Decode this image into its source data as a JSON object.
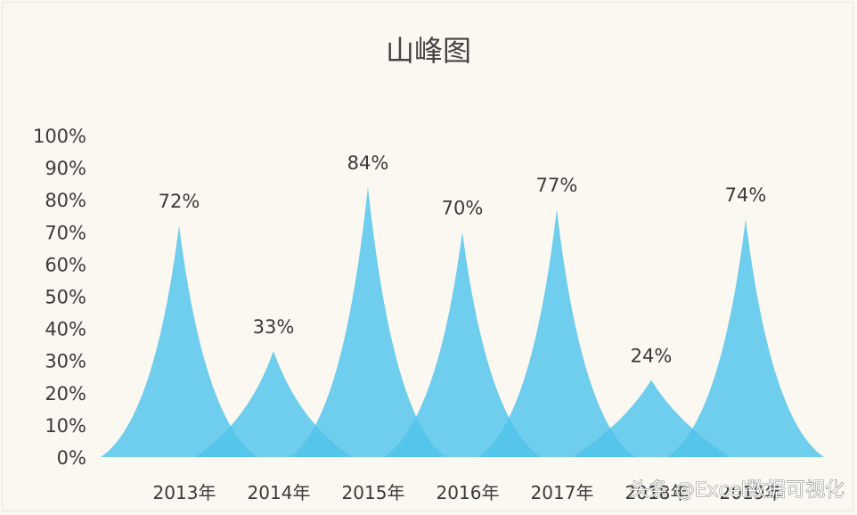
{
  "chart_data": {
    "type": "area",
    "title": "山峰图",
    "categories": [
      "2013年",
      "2014年",
      "2015年",
      "2016年",
      "2017年",
      "2018年",
      "2019年"
    ],
    "values": [
      0.72,
      0.33,
      0.84,
      0.7,
      0.77,
      0.24,
      0.74
    ],
    "data_labels": [
      "72%",
      "33%",
      "84%",
      "70%",
      "77%",
      "24%",
      "74%"
    ],
    "ylim": [
      0,
      1
    ],
    "yticks": [
      "0%",
      "10%",
      "20%",
      "30%",
      "40%",
      "50%",
      "60%",
      "70%",
      "80%",
      "90%",
      "100%"
    ],
    "grid": false,
    "legend": "none",
    "colors": {
      "peak": "#4fc3ec",
      "overlap": "#1ea9e1",
      "text": "#3a3a3a",
      "title": "#444444"
    }
  },
  "watermark": "头条 @Excel数据可视化"
}
